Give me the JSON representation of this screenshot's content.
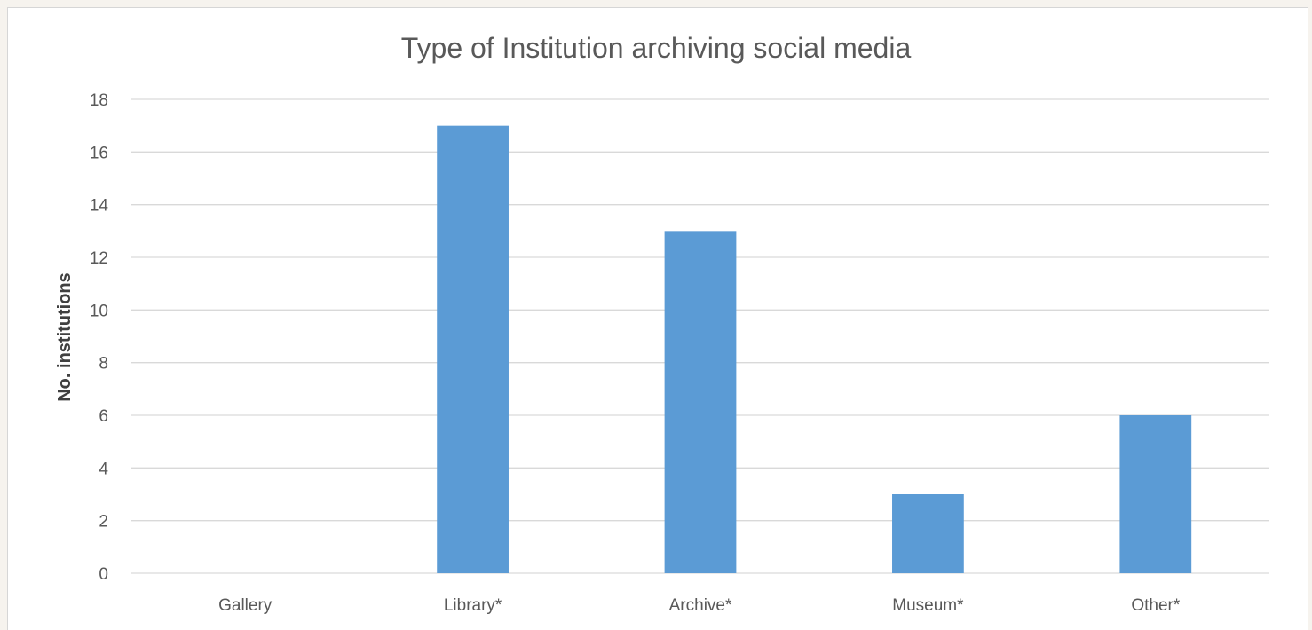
{
  "chart_data": {
    "type": "bar",
    "title": "Type of Institution archiving social media",
    "xlabel": "",
    "ylabel": "No. institutions",
    "categories": [
      "Gallery",
      "Library*",
      "Archive*",
      "Museum*",
      "Other*"
    ],
    "values": [
      0,
      17,
      13,
      3,
      6
    ],
    "ylim": [
      0,
      18
    ],
    "yticks": [
      0,
      2,
      4,
      6,
      8,
      10,
      12,
      14,
      16,
      18
    ],
    "grid": true,
    "legend": "none",
    "bar_color": "#5b9bd5"
  }
}
